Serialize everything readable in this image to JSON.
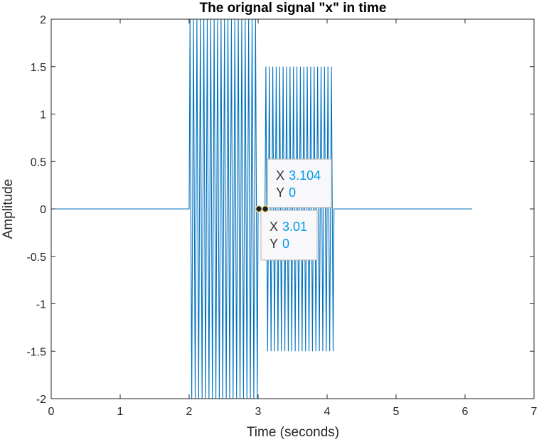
{
  "chart_data": {
    "type": "line",
    "title": "The orignal signal \"x\" in time",
    "xlabel": "Time (seconds)",
    "ylabel": "Amplitude",
    "xlim": [
      0,
      7
    ],
    "ylim": [
      -2,
      2
    ],
    "xticks": [
      0,
      1,
      2,
      3,
      4,
      5,
      6,
      7
    ],
    "yticks": [
      2,
      1.5,
      1,
      0.5,
      0,
      -0.5,
      -1,
      -1.5,
      -2
    ],
    "grid": false,
    "line_color": "#0072bd",
    "series": [
      {
        "segments": [
          {
            "x_start": 0,
            "x_end": 2,
            "amplitude": 0,
            "cycles": 0
          },
          {
            "x_start": 2,
            "x_end": 3,
            "amplitude": 2,
            "cycles": 20
          },
          {
            "x_start": 3,
            "x_end": 3.1,
            "amplitude": 0,
            "cycles": 0
          },
          {
            "x_start": 3.1,
            "x_end": 4.1,
            "amplitude": 1.5,
            "cycles": 20
          },
          {
            "x_start": 4.1,
            "x_end": 6.1,
            "amplitude": 0,
            "cycles": 0
          }
        ]
      }
    ],
    "datatips": [
      {
        "x_label": "X",
        "x_value": "3.104",
        "y_label": "Y",
        "y_value": "0",
        "x": 3.104,
        "y": 0
      },
      {
        "x_label": "X",
        "x_value": "3.01",
        "y_label": "Y",
        "y_value": "0",
        "x": 3.01,
        "y": 0
      }
    ]
  }
}
